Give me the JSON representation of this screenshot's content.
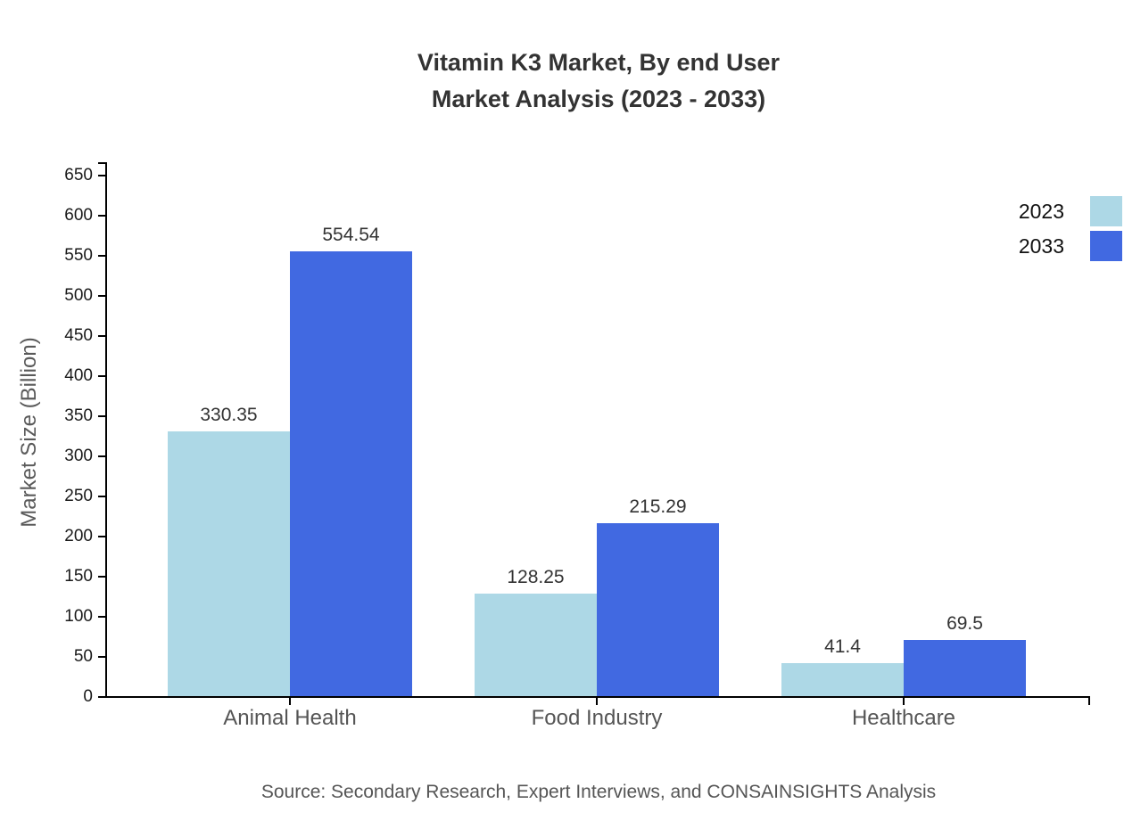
{
  "title": {
    "line1": "Vitamin K3 Market, By end User",
    "line2": "Market Analysis (2023 - 2033)"
  },
  "source_note": "Source: Secondary Research, Expert Interviews, and CONSAINSIGHTS Analysis",
  "legend": {
    "items": [
      {
        "label": "2023",
        "color": "#ADD8E6"
      },
      {
        "label": "2033",
        "color": "#4169E1"
      }
    ]
  },
  "chart_data": {
    "type": "bar",
    "title": "Vitamin K3 Market, By end User Market Analysis (2023 - 2033)",
    "categories": [
      "Animal Health",
      "Food Industry",
      "Healthcare"
    ],
    "series": [
      {
        "name": "2023",
        "color": "#ADD8E6",
        "values": [
          330.35,
          128.25,
          41.4
        ],
        "value_labels": [
          "330.35",
          "128.25",
          "41.4"
        ]
      },
      {
        "name": "2033",
        "color": "#4169E1",
        "values": [
          554.54,
          215.29,
          69.5
        ],
        "value_labels": [
          "554.54",
          "215.29",
          "69.5"
        ]
      }
    ],
    "xlabel": "",
    "ylabel": "Market Size (Billion)",
    "ylim": [
      0,
      650
    ],
    "yticks": [
      0,
      50,
      100,
      150,
      200,
      250,
      300,
      350,
      400,
      450,
      500,
      550,
      600,
      650
    ],
    "grid": false,
    "legend_position": "top-right"
  },
  "colors": {
    "axis": "#000000",
    "title_text": "#333333",
    "tick_label_text": "#1a1a1a",
    "muted_text": "#555555",
    "value_label_text": "#333333",
    "background": "#ffffff"
  }
}
